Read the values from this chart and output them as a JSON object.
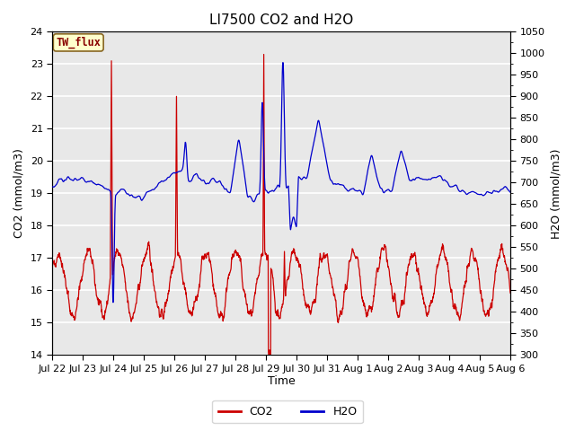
{
  "title": "LI7500 CO2 and H2O",
  "xlabel": "Time",
  "ylabel_left": "CO2 (mmol/m3)",
  "ylabel_right": "H2O (mmol/m3)",
  "ylim_left": [
    14.0,
    24.0
  ],
  "ylim_right": [
    300,
    1050
  ],
  "yticks_left": [
    14.0,
    15.0,
    16.0,
    17.0,
    18.0,
    19.0,
    20.0,
    21.0,
    22.0,
    23.0,
    24.0
  ],
  "yticks_right": [
    300,
    350,
    400,
    450,
    500,
    550,
    600,
    650,
    700,
    750,
    800,
    850,
    900,
    950,
    1000,
    1050
  ],
  "xtick_labels": [
    "Jul 22",
    "Jul 23",
    "Jul 24",
    "Jul 25",
    "Jul 26",
    "Jul 27",
    "Jul 28",
    "Jul 29",
    "Jul 30",
    "Jul 31",
    "Aug 1",
    "Aug 2",
    "Aug 3",
    "Aug 4",
    "Aug 5",
    "Aug 6"
  ],
  "co2_color": "#cc0000",
  "h2o_color": "#0000cc",
  "legend_co2": "CO2",
  "legend_h2o": "H2O",
  "label_text": "TW_flux",
  "label_bg": "#ffffcc",
  "label_edge": "#886622",
  "label_text_color": "#880000",
  "fig_bg": "#ffffff",
  "plot_bg": "#e8e8e8",
  "n_days": 15.5,
  "n_points": 2000,
  "title_fontsize": 11,
  "axis_label_fontsize": 9,
  "tick_fontsize": 8,
  "legend_fontsize": 9
}
